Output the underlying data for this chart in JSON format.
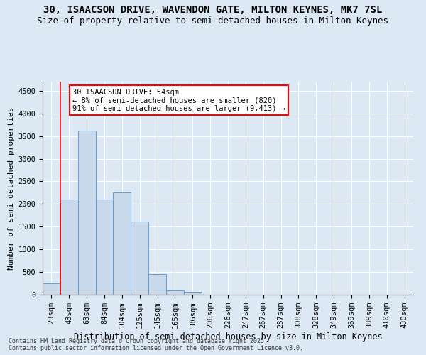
{
  "title": "30, ISAACSON DRIVE, WAVENDON GATE, MILTON KEYNES, MK7 7SL",
  "subtitle": "Size of property relative to semi-detached houses in Milton Keynes",
  "xlabel": "Distribution of semi-detached houses by size in Milton Keynes",
  "ylabel": "Number of semi-detached properties",
  "footnote": "Contains HM Land Registry data © Crown copyright and database right 2025.\nContains public sector information licensed under the Open Government Licence v3.0.",
  "bar_labels": [
    "23sqm",
    "43sqm",
    "63sqm",
    "84sqm",
    "104sqm",
    "125sqm",
    "145sqm",
    "165sqm",
    "186sqm",
    "206sqm",
    "226sqm",
    "247sqm",
    "267sqm",
    "287sqm",
    "308sqm",
    "328sqm",
    "349sqm",
    "369sqm",
    "389sqm",
    "410sqm",
    "430sqm"
  ],
  "bar_values": [
    250,
    2100,
    3620,
    2100,
    2250,
    1620,
    450,
    100,
    60,
    0,
    0,
    0,
    0,
    0,
    0,
    0,
    0,
    0,
    0,
    0,
    0
  ],
  "bar_color": "#c9d9ec",
  "bar_edge_color": "#6699cc",
  "annotation_text": "30 ISAACSON DRIVE: 54sqm\n← 8% of semi-detached houses are smaller (820)\n91% of semi-detached houses are larger (9,413) →",
  "vline_x": 1,
  "ylim": [
    0,
    4700
  ],
  "yticks": [
    0,
    500,
    1000,
    1500,
    2000,
    2500,
    3000,
    3500,
    4000,
    4500
  ],
  "background_color": "#dce9f5",
  "axes_background": "#dce9f5",
  "grid_color": "#ffffff",
  "title_fontsize": 10,
  "subtitle_fontsize": 9,
  "annotation_fontsize": 7.5,
  "ylabel_fontsize": 8,
  "xlabel_fontsize": 8.5,
  "footnote_fontsize": 6,
  "tick_fontsize": 7.5
}
